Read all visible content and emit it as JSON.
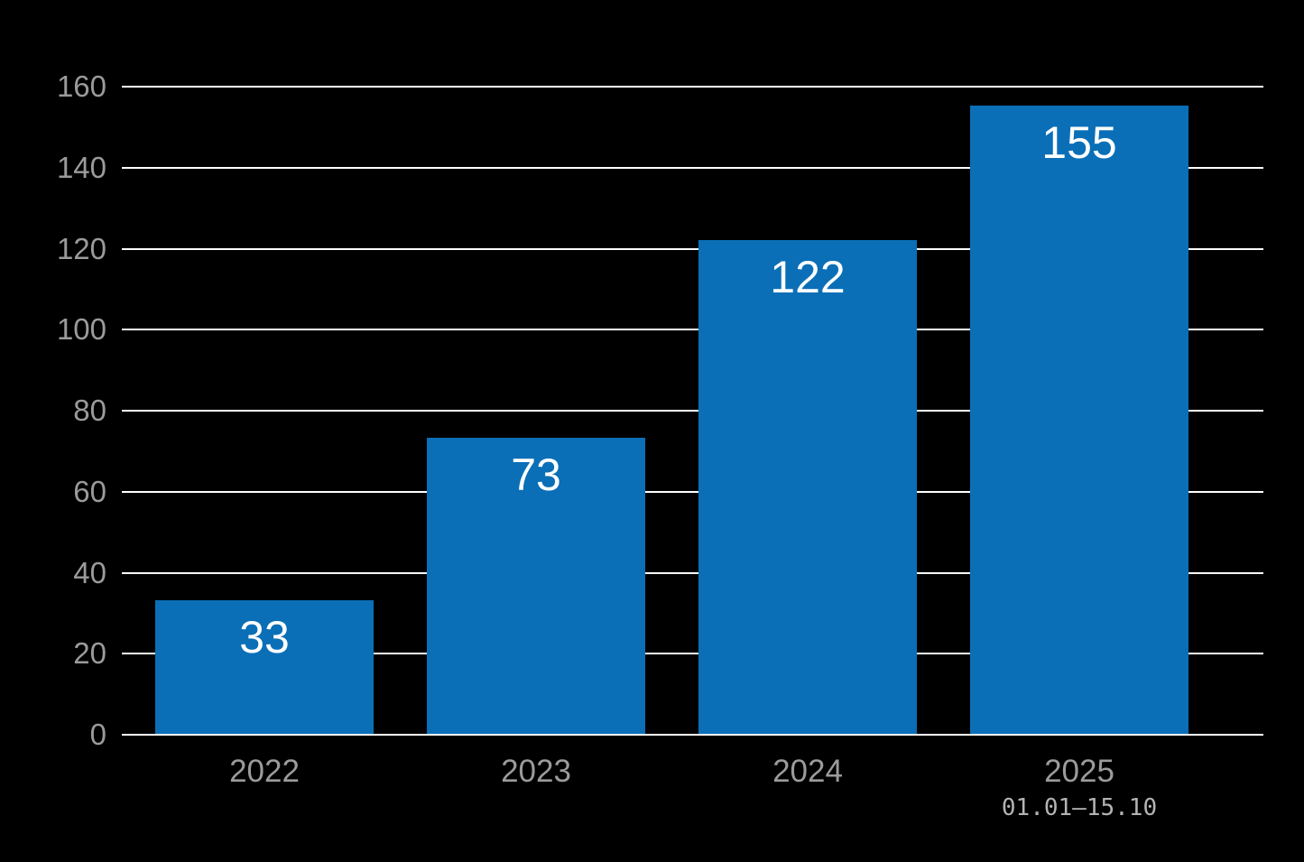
{
  "colors": {
    "background": "#000000",
    "bar": "#0a6fb7",
    "grid": "#ffffff",
    "tick_label": "#9b9b9b",
    "x_label": "#9b9b9b",
    "x_sublabel": "#b3b3b3",
    "value_label": "#ffffff"
  },
  "chart_data": {
    "type": "bar",
    "categories": [
      "2022",
      "2023",
      "2024",
      "2025"
    ],
    "values": [
      33,
      73,
      122,
      155
    ],
    "category_sublabels": [
      "",
      "",
      "",
      "01.01–15.10"
    ],
    "value_labels": [
      "33",
      "73",
      "122",
      "155"
    ],
    "title": "",
    "xlabel": "",
    "ylabel": "",
    "ylim": [
      0,
      160
    ],
    "yticks": [
      0,
      20,
      40,
      60,
      80,
      100,
      120,
      140,
      160
    ],
    "grid": "horizontal-only",
    "legend_position": "none",
    "value_label_position": "inside-top",
    "bar_orientation": "vertical"
  }
}
